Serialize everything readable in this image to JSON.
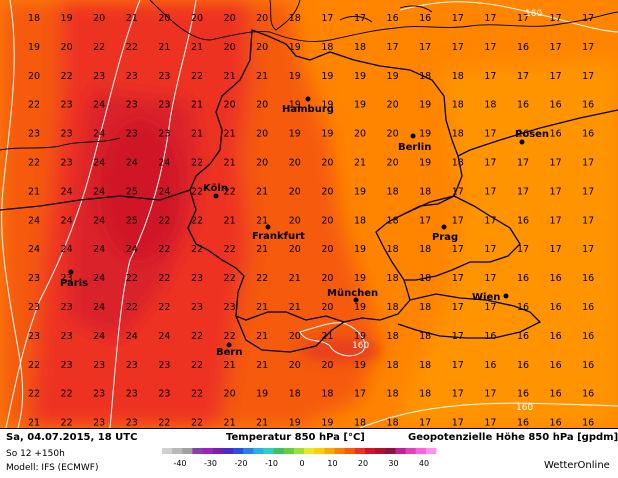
{
  "map": {
    "colors": {
      "ocean": "#ff9e00",
      "warm": "#ff7f00",
      "hot": "#f25a0a",
      "red": "#ee3024",
      "deep_red": "#d91e2a",
      "contour": "#ffffff",
      "border": "#000000",
      "label": "#000000"
    },
    "cities": [
      {
        "name": "Hamburg"
      },
      {
        "name": "Berlin"
      },
      {
        "name": "Posen"
      },
      {
        "name": "Köln"
      },
      {
        "name": "Frankfurt"
      },
      {
        "name": "Prag"
      },
      {
        "name": "Paris"
      },
      {
        "name": "München"
      },
      {
        "name": "Wien"
      },
      {
        "name": "Bern"
      }
    ],
    "contour_labels": [
      "160",
      "160",
      "160"
    ],
    "temperature_grid": [
      [
        "18",
        "19",
        "20",
        "21",
        "20",
        "20",
        "20",
        "20",
        "18",
        "17",
        "17",
        "16",
        "16",
        "17",
        "17",
        "17",
        "17",
        "17"
      ],
      [
        "19",
        "20",
        "22",
        "22",
        "21",
        "21",
        "20",
        "20",
        "19",
        "18",
        "18",
        "17",
        "17",
        "17",
        "17",
        "16",
        "17",
        "17"
      ],
      [
        "20",
        "22",
        "23",
        "23",
        "23",
        "22",
        "21",
        "21",
        "19",
        "19",
        "19",
        "19",
        "18",
        "18",
        "17",
        "17",
        "17",
        "17"
      ],
      [
        "22",
        "23",
        "24",
        "23",
        "23",
        "21",
        "20",
        "20",
        "19",
        "19",
        "19",
        "20",
        "19",
        "18",
        "18",
        "16",
        "16",
        "16"
      ],
      [
        "23",
        "23",
        "24",
        "23",
        "23",
        "21",
        "21",
        "20",
        "19",
        "19",
        "20",
        "20",
        "19",
        "18",
        "17",
        "16",
        "16",
        "16"
      ],
      [
        "22",
        "23",
        "24",
        "24",
        "24",
        "22",
        "21",
        "20",
        "20",
        "20",
        "21",
        "20",
        "19",
        "18",
        "17",
        "17",
        "17",
        "17"
      ],
      [
        "21",
        "24",
        "24",
        "25",
        "24",
        "22",
        "22",
        "21",
        "20",
        "20",
        "19",
        "18",
        "18",
        "17",
        "17",
        "17",
        "17",
        "17"
      ],
      [
        "24",
        "24",
        "24",
        "25",
        "22",
        "22",
        "21",
        "21",
        "20",
        "20",
        "18",
        "18",
        "17",
        "17",
        "17",
        "16",
        "17",
        "17"
      ],
      [
        "24",
        "24",
        "24",
        "24",
        "22",
        "22",
        "22",
        "21",
        "20",
        "20",
        "19",
        "18",
        "18",
        "17",
        "17",
        "17",
        "17",
        "17"
      ],
      [
        "23",
        "23",
        "24",
        "22",
        "22",
        "23",
        "22",
        "22",
        "21",
        "20",
        "19",
        "18",
        "18",
        "17",
        "17",
        "16",
        "16",
        "16"
      ],
      [
        "23",
        "23",
        "24",
        "22",
        "22",
        "23",
        "23",
        "21",
        "21",
        "20",
        "19",
        "18",
        "18",
        "17",
        "17",
        "16",
        "16",
        "16"
      ],
      [
        "23",
        "23",
        "24",
        "24",
        "24",
        "22",
        "22",
        "21",
        "20",
        "21",
        "19",
        "18",
        "18",
        "17",
        "16",
        "16",
        "16",
        "16"
      ],
      [
        "22",
        "23",
        "23",
        "23",
        "23",
        "22",
        "21",
        "21",
        "20",
        "20",
        "19",
        "18",
        "18",
        "17",
        "16",
        "16",
        "16",
        "16"
      ],
      [
        "22",
        "22",
        "23",
        "23",
        "23",
        "22",
        "20",
        "19",
        "18",
        "18",
        "17",
        "18",
        "18",
        "17",
        "17",
        "16",
        "16",
        "16"
      ],
      [
        "21",
        "22",
        "23",
        "23",
        "22",
        "22",
        "21",
        "21",
        "19",
        "19",
        "18",
        "18",
        "17",
        "17",
        "17",
        "16",
        "16",
        "16"
      ]
    ]
  },
  "footer": {
    "date": "Sa, 04.07.2015, 18 UTC",
    "run": "So 12 +150h",
    "model": "Modell: IFS (ECMWF)",
    "temp_title": "Temperatur 850 hPa [°C]",
    "geo_title": "Geopotenzielle Höhe 850 hPa [gpdm]",
    "brand": "WetterOnline",
    "legend": {
      "ticks": [
        "-40",
        "-30",
        "-20",
        "-10",
        "0",
        "10",
        "20",
        "30",
        "40"
      ],
      "colors": [
        "#d0d0d0",
        "#b8b8b8",
        "#a0a0a0",
        "#8a3fb0",
        "#a020c0",
        "#7a1fb0",
        "#4a2cc8",
        "#2a4fe0",
        "#2a7fe8",
        "#2ab0e8",
        "#30d0c0",
        "#40c060",
        "#60d040",
        "#a0e030",
        "#e8e820",
        "#ffd000",
        "#ffa800",
        "#ff8000",
        "#ff5a00",
        "#f03020",
        "#d8102a",
        "#b0102a",
        "#901040",
        "#c020a0",
        "#e040c0",
        "#ff60e0",
        "#ff90f0"
      ]
    }
  }
}
